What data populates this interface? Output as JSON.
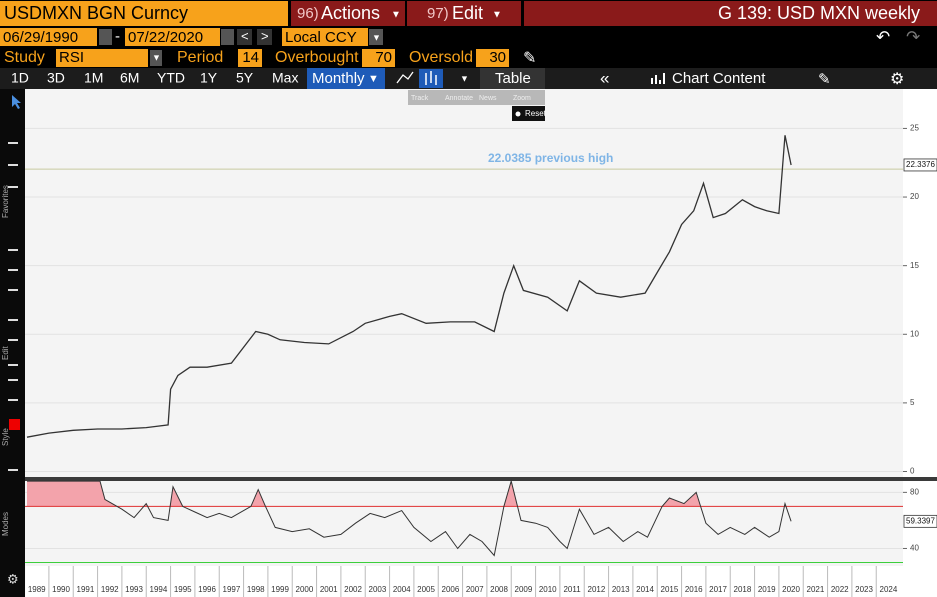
{
  "header": {
    "ticker": "USDMXN BGN Curncy",
    "actions_num": "96)",
    "actions": "Actions",
    "edit_num": "97)",
    "edit": "Edit",
    "title": "G 139: USD MXN weekly"
  },
  "controls": {
    "start": "06/29/1990",
    "end": "07/22/2020",
    "currency": "Local CCY",
    "study_label": "Study",
    "study": "RSI",
    "period_label": "Period",
    "period": 14,
    "overbought_label": "Overbought",
    "overbought": 70,
    "oversold_label": "Oversold",
    "oversold": 30
  },
  "toolbar": {
    "ranges": [
      "1D",
      "3D",
      "1M",
      "6M",
      "YTD",
      "1Y",
      "5Y",
      "Max"
    ],
    "frequency": "Monthly",
    "table": "Table",
    "chart_content": "Chart Content",
    "mini": [
      "Track",
      "Annotate",
      "News",
      "Zoom"
    ],
    "reset": "Reset"
  },
  "sidebar": [
    "Favorites",
    "Edit",
    "Style",
    "Modes"
  ],
  "chart_data": [
    {
      "type": "line",
      "color": "#333333",
      "x": [
        1989.1,
        1990,
        1991,
        1992,
        1993,
        1994,
        1994.9,
        1995,
        1995.3,
        1995.8,
        1996.5,
        1997.5,
        1998.5,
        1999,
        1999.5,
        2000.5,
        2001.5,
        2002.5,
        2003,
        2004,
        2004.5,
        2005.5,
        2006.5,
        2007.5,
        2008.3,
        2008.7,
        2009.1,
        2009.5,
        2010.5,
        2011.3,
        2011.8,
        2012.5,
        2013.5,
        2014.5,
        2015,
        2015.5,
        2016,
        2016.5,
        2016.9,
        2017.3,
        2017.8,
        2018.5,
        2019,
        2019.5,
        2020,
        2020.25,
        2020.5
      ],
      "values": [
        2.5,
        2.8,
        3.0,
        3.1,
        3.1,
        3.2,
        3.4,
        6.0,
        7.0,
        7.6,
        7.6,
        7.9,
        10.2,
        10.0,
        9.6,
        9.4,
        9.3,
        10.2,
        10.8,
        11.3,
        11.5,
        10.8,
        10.9,
        10.9,
        10.2,
        13.0,
        15.0,
        13.2,
        12.7,
        11.7,
        13.9,
        13.0,
        12.7,
        13.0,
        14.5,
        16.0,
        18.0,
        19.0,
        21.0,
        18.5,
        18.8,
        19.8,
        19.3,
        19.0,
        18.8,
        24.5,
        22.3376
      ],
      "xlim": [
        1989.1,
        2025.1
      ],
      "ylim": [
        -0.4,
        27.8
      ],
      "yticks": [
        0,
        5,
        10,
        15,
        20,
        25
      ],
      "grid": true,
      "annotations": [
        {
          "text": "22.0385 previous high",
          "value": 22.0385
        }
      ],
      "last_value": 22.3376
    },
    {
      "type": "line",
      "color": "#333333",
      "fill_color": "#f3a3ab",
      "x": [
        1989.1,
        1992.1,
        1992.3,
        1993,
        1993.5,
        1994,
        1994.3,
        1994.9,
        1995.1,
        1995.5,
        1996,
        1996.5,
        1997,
        1997.5,
        1998.3,
        1998.6,
        1998.9,
        1999.3,
        2000,
        2000.7,
        2001.3,
        2002,
        2002.6,
        2003.2,
        2003.8,
        2004.5,
        2005,
        2005.7,
        2006.3,
        2006.8,
        2007.3,
        2007.8,
        2008.3,
        2008.7,
        2009,
        2009.4,
        2010,
        2010.5,
        2011,
        2011.3,
        2011.8,
        2012.4,
        2013,
        2013.6,
        2014.2,
        2014.6,
        2015.2,
        2015.5,
        2016.1,
        2016.6,
        2017,
        2017.5,
        2018,
        2018.6,
        2019,
        2019.6,
        2020,
        2020.25,
        2020.5
      ],
      "values": [
        88,
        88,
        75,
        68,
        62,
        72,
        62,
        60,
        84,
        70,
        66,
        62,
        65,
        62,
        70,
        82,
        70,
        55,
        52,
        54,
        48,
        50,
        58,
        65,
        62,
        67,
        55,
        45,
        52,
        40,
        50,
        45,
        35,
        70,
        88,
        60,
        58,
        55,
        45,
        40,
        68,
        50,
        55,
        45,
        52,
        48,
        70,
        76,
        72,
        80,
        58,
        50,
        55,
        50,
        55,
        48,
        52,
        72,
        59.3397
      ],
      "xlim": [
        1989.1,
        2025.1
      ],
      "ylim": [
        27.5,
        88.1
      ],
      "yticks": [
        40,
        80
      ],
      "xticks": [
        1989,
        1990,
        1991,
        1992,
        1993,
        1994,
        1995,
        1996,
        1997,
        1998,
        1999,
        2000,
        2001,
        2002,
        2003,
        2004,
        2005,
        2006,
        2007,
        2008,
        2009,
        2010,
        2011,
        2012,
        2013,
        2014,
        2015,
        2016,
        2017,
        2018,
        2019,
        2020,
        2021,
        2022,
        2023,
        2024
      ],
      "last_value": 59.3397
    }
  ]
}
